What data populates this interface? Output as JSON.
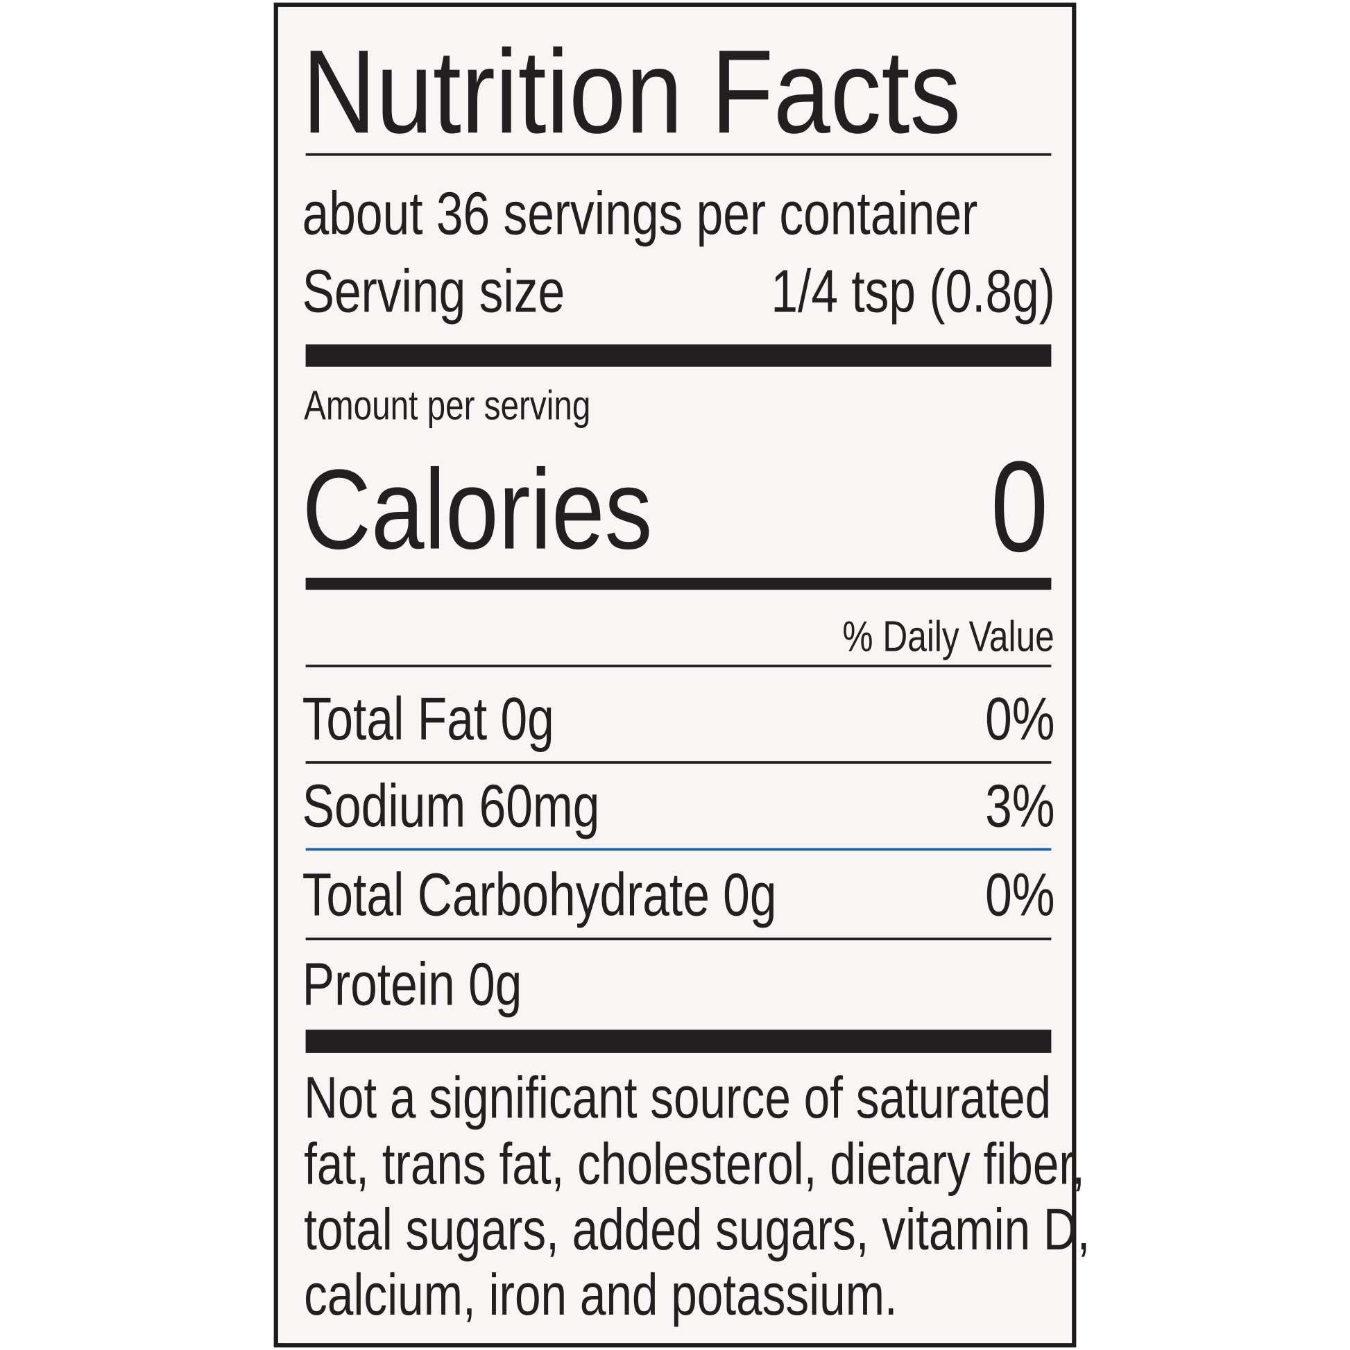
{
  "title": "Nutrition Facts",
  "servings_per_container": "about 36 servings per container",
  "serving_size": {
    "label": "Serving size",
    "value": "1/4 tsp (0.8g)"
  },
  "amount_per_serving": "Amount per serving",
  "calories": {
    "label": "Calories",
    "value": "0"
  },
  "daily_value_header": "% Daily Value",
  "nutrients": [
    {
      "name": "Total Fat 0g",
      "dv": "0%"
    },
    {
      "name": "Sodium 60mg",
      "dv": "3%"
    },
    {
      "name": "Total Carbohydrate 0g",
      "dv": "0%"
    },
    {
      "name": "Protein 0g",
      "dv": ""
    }
  ],
  "footnote_lines": [
    "Not a significant source of saturated",
    "fat, trans fat, cholesterol, dietary fiber,",
    "total sugars, added sugars, vitamin D,",
    "calcium, iron and potassium."
  ],
  "colors": {
    "text": "#231f20",
    "background": "#f8f5f4",
    "accent_rule": "#1f5f9e"
  }
}
